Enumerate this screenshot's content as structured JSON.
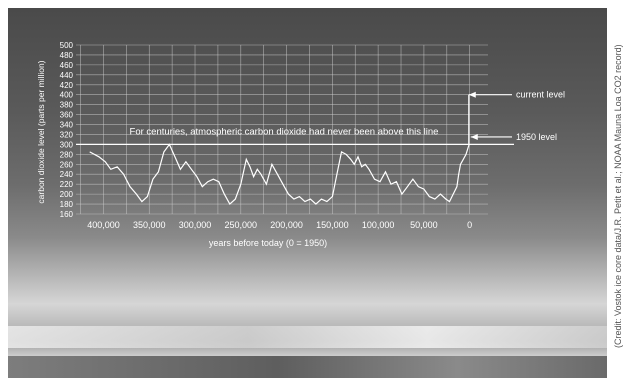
{
  "chart_data": {
    "type": "line",
    "ylabel": "carbon dioxide level (parts per million)",
    "xlabel": "years before today (0 = 1950)",
    "yticks": [
      160,
      180,
      200,
      220,
      240,
      260,
      280,
      300,
      320,
      340,
      360,
      380,
      400,
      420,
      440,
      460,
      480,
      500
    ],
    "xticks": [
      {
        "label": "400,000",
        "value": 400000
      },
      {
        "label": "350,000",
        "value": 350000
      },
      {
        "label": "300,000",
        "value": 300000
      },
      {
        "label": "250,000",
        "value": 250000
      },
      {
        "label": "200,000",
        "value": 200000
      },
      {
        "label": "150,000",
        "value": 150000
      },
      {
        "label": "100,000",
        "value": 100000
      },
      {
        "label": "50,000",
        "value": 50000
      },
      {
        "label": "0",
        "value": 0
      }
    ],
    "xlim": [
      430000,
      -20000
    ],
    "ylim": [
      160,
      500
    ],
    "grid": true,
    "series": [
      {
        "x": [
          415000,
          405000,
          398000,
          392000,
          385000,
          378000,
          371000,
          364000,
          358000,
          352000,
          346000,
          340000,
          334000,
          328000,
          322000,
          316000,
          310000,
          304000,
          298000,
          292000,
          286000,
          280000,
          274000,
          268000,
          262000,
          256000,
          250000,
          244000,
          240000,
          236000,
          232000,
          228000,
          222000,
          216000,
          210000,
          204000,
          198000,
          192000,
          186000,
          180000,
          174000,
          168000,
          162000,
          156000,
          150000,
          145000,
          140000,
          135000,
          130000,
          126000,
          122000,
          118000,
          114000,
          110000,
          104000,
          98000,
          92000,
          86000,
          80000,
          74000,
          68000,
          62000,
          56000,
          50000,
          44000,
          38000,
          32000,
          26000,
          22000,
          18000,
          14000,
          12000,
          10000,
          7000,
          4000,
          1000
        ],
        "values": [
          285,
          275,
          265,
          250,
          255,
          240,
          215,
          200,
          185,
          195,
          230,
          245,
          285,
          300,
          275,
          250,
          265,
          250,
          235,
          215,
          225,
          230,
          225,
          200,
          180,
          190,
          220,
          270,
          255,
          235,
          250,
          240,
          220,
          260,
          240,
          220,
          200,
          190,
          195,
          185,
          190,
          180,
          190,
          185,
          195,
          240,
          285,
          280,
          270,
          260,
          275,
          255,
          260,
          250,
          230,
          225,
          245,
          220,
          225,
          200,
          215,
          230,
          215,
          210,
          195,
          190,
          200,
          190,
          185,
          200,
          215,
          240,
          260,
          270,
          280,
          298
        ]
      }
    ],
    "annotations": {
      "baseline_text": "For centuries, atmospheric carbon dioxide had never been above this line",
      "current_level": "current level",
      "level_1950": "1950 level"
    }
  },
  "credit": "(Credit: Vostok ice core data/J.R. Petit et al.; NOAA Mauna Loa CO2 record)",
  "colors": {
    "grid": "#cfcfcf",
    "line": "#ffffff",
    "background": "#4a4a4a"
  }
}
